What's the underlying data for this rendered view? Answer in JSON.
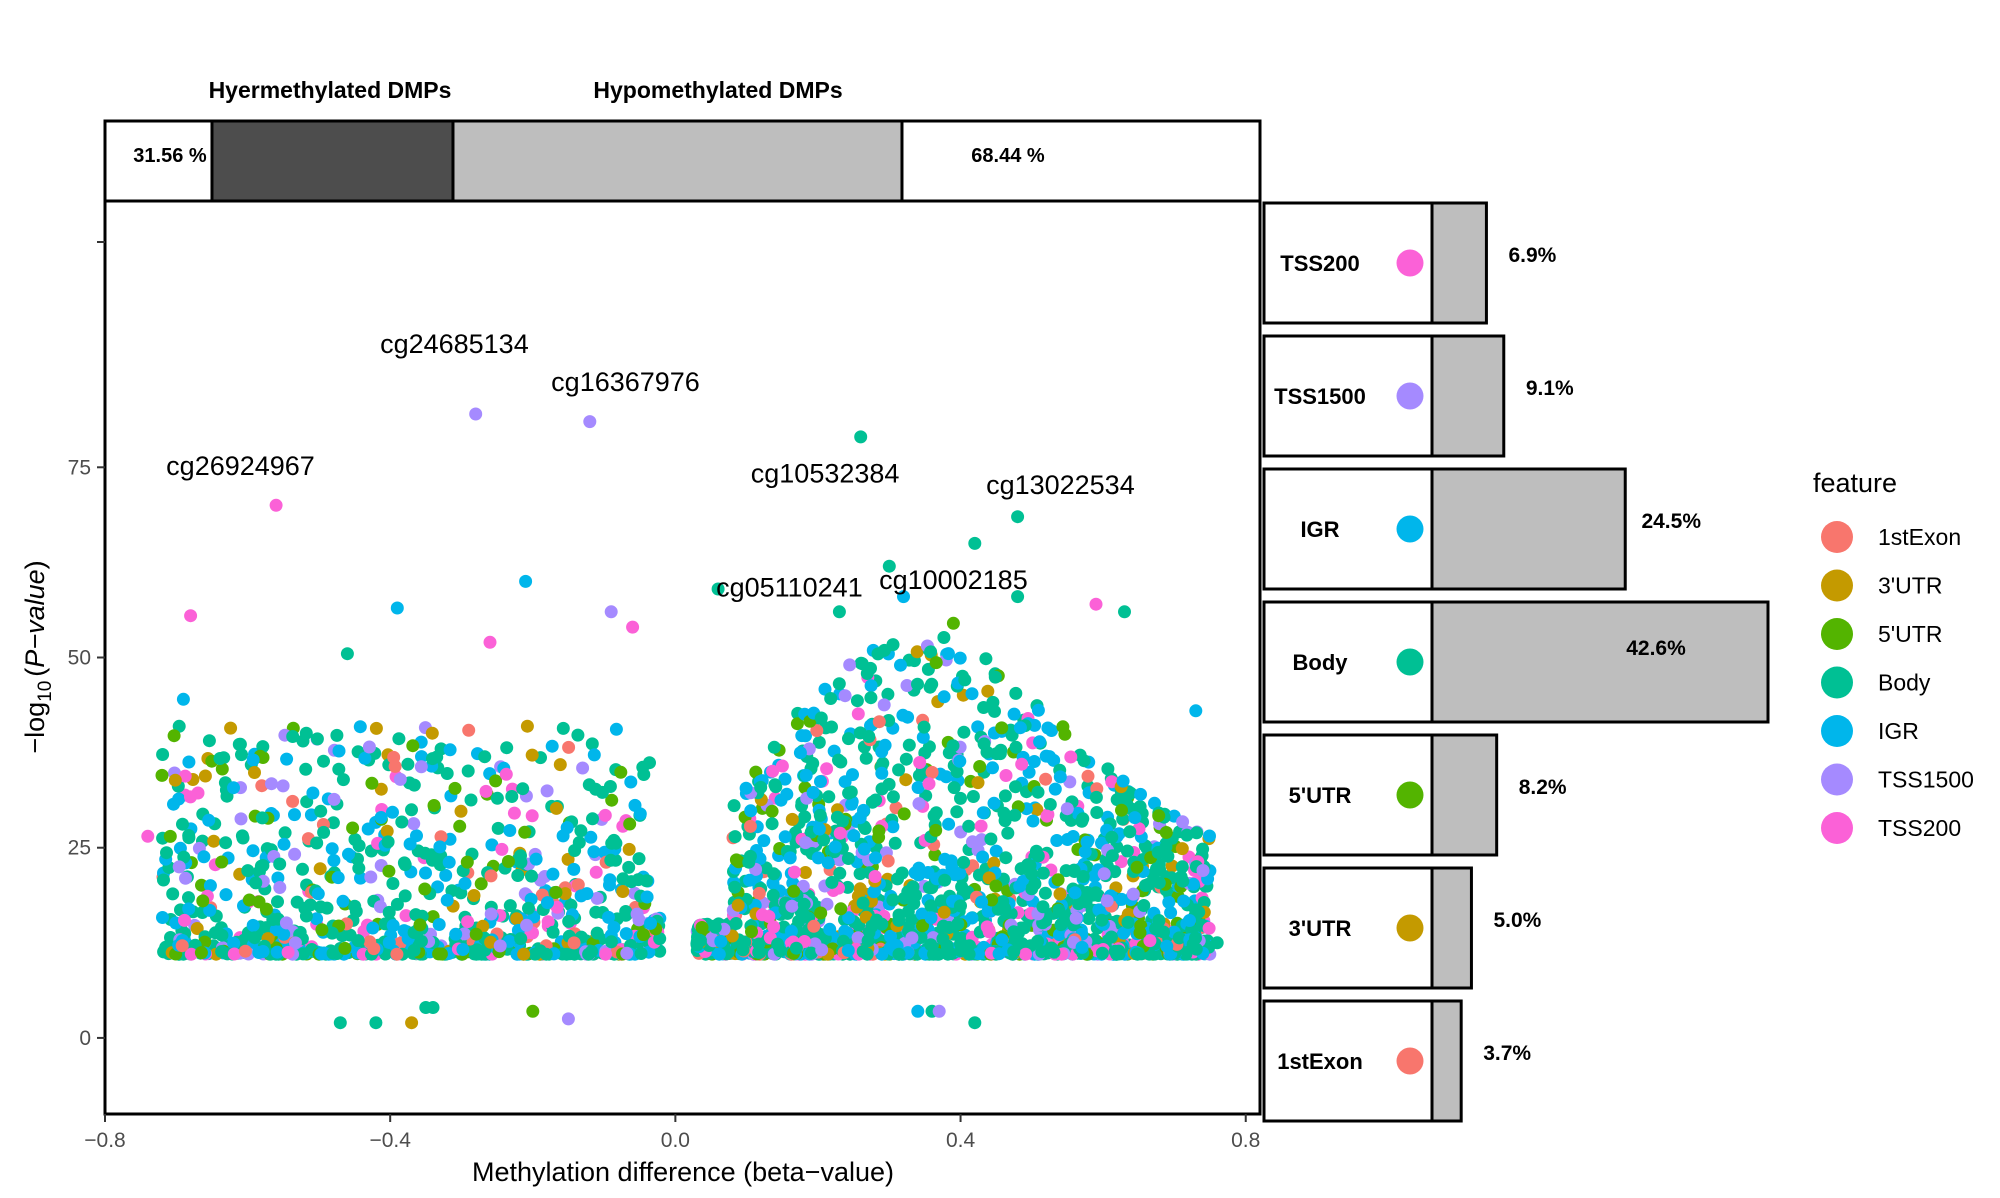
{
  "chart_data": {
    "type": "scatter",
    "xlabel": "Methylation difference (beta−value)",
    "ylabel_prefix": "−log",
    "ylabel_sub": "10",
    "ylabel_open": "(",
    "ylabel_italic": "P−value",
    "ylabel_close": ")",
    "xlim": [
      -0.8,
      0.82
    ],
    "ylim": [
      -10,
      110
    ],
    "x_ticks": [
      -0.8,
      -0.4,
      0.0,
      0.4,
      0.8
    ],
    "x_tick_labels": [
      "−0.8",
      "−0.4",
      "0.0",
      "0.4",
      "0.8"
    ],
    "y_ticks": [
      0,
      25,
      50,
      75
    ],
    "y_tick_labels": [
      "0",
      "25",
      "50",
      "75"
    ],
    "grid": false,
    "top_bar": {
      "labels": [
        "Hyermethylated DMPs",
        "Hypomethylated DMPs"
      ],
      "left_pct_label": "31.56 %",
      "right_pct_label": "68.44 %",
      "hyper_fraction": 0.3156,
      "hypo_fraction": 0.6844,
      "hyper_color": "#4d4d4d",
      "hypo_color": "#bebebe"
    },
    "features": [
      {
        "name": "1stExon",
        "color": "#F8766D"
      },
      {
        "name": "3'UTR",
        "color": "#C49A00"
      },
      {
        "name": "5'UTR",
        "color": "#53B400"
      },
      {
        "name": "Body",
        "color": "#00C094"
      },
      {
        "name": "IGR",
        "color": "#00B6EB"
      },
      {
        "name": "TSS1500",
        "color": "#A58AFF"
      },
      {
        "name": "TSS200",
        "color": "#FB61D7"
      }
    ],
    "legend_title": "feature",
    "legend_position": "right",
    "side_bars": [
      {
        "name": "TSS200",
        "value": 6.9,
        "label": "6.9%",
        "color": "#FB61D7"
      },
      {
        "name": "TSS1500",
        "value": 9.1,
        "label": "9.1%",
        "color": "#A58AFF"
      },
      {
        "name": "IGR",
        "value": 24.5,
        "label": "24.5%",
        "color": "#00B6EB"
      },
      {
        "name": "Body",
        "value": 42.6,
        "label": "42.6%",
        "color": "#00C094"
      },
      {
        "name": "5'UTR",
        "value": 8.2,
        "label": "8.2%",
        "color": "#53B400"
      },
      {
        "name": "3'UTR",
        "value": 5.0,
        "label": "5.0%",
        "color": "#C49A00"
      },
      {
        "name": "1stExon",
        "value": 3.7,
        "label": "3.7%",
        "color": "#F8766D"
      }
    ],
    "annotations": [
      {
        "label": "cg24685134",
        "x": -0.28,
        "y": 82,
        "color": "#A58AFF"
      },
      {
        "label": "cg16367976",
        "x": -0.12,
        "y": 81,
        "color": "#A58AFF"
      },
      {
        "label": "cg26924967",
        "x": -0.56,
        "y": 70,
        "color": "#FB61D7"
      },
      {
        "label": "cg10532384",
        "x": 0.26,
        "y": 79,
        "color": "#00C094"
      },
      {
        "label": "cg13022534",
        "x": 0.48,
        "y": 68.5,
        "color": "#00C094"
      },
      {
        "label": "cg10002185",
        "x": 0.3,
        "y": 62,
        "color": "#00C094"
      },
      {
        "label": "cg05110241",
        "x": 0.06,
        "y": 59,
        "color": "#00C094"
      }
    ],
    "sample_points": [
      {
        "feature": "IGR",
        "x": -0.69,
        "y": 44.5
      },
      {
        "feature": "TSS200",
        "x": -0.68,
        "y": 55.5
      },
      {
        "feature": "TSS200",
        "x": -0.74,
        "y": 26.5
      },
      {
        "feature": "5'UTR",
        "x": -0.72,
        "y": 34.5
      },
      {
        "feature": "IGR",
        "x": -0.21,
        "y": 60
      },
      {
        "feature": "TSS1500",
        "x": -0.09,
        "y": 56
      },
      {
        "feature": "TSS200",
        "x": -0.06,
        "y": 54
      },
      {
        "feature": "IGR",
        "x": -0.39,
        "y": 56.5
      },
      {
        "feature": "TSS200",
        "x": -0.26,
        "y": 52
      },
      {
        "feature": "Body",
        "x": -0.46,
        "y": 50.5
      },
      {
        "feature": "IGR",
        "x": 0.73,
        "y": 43
      },
      {
        "feature": "TSS1500",
        "x": 0.74,
        "y": 22
      },
      {
        "feature": "TSS200",
        "x": 0.59,
        "y": 57
      },
      {
        "feature": "Body",
        "x": 0.42,
        "y": 65
      },
      {
        "feature": "Body",
        "x": 0.23,
        "y": 56
      },
      {
        "feature": "IGR",
        "x": 0.32,
        "y": 58
      },
      {
        "feature": "Body",
        "x": 0.48,
        "y": 58
      },
      {
        "feature": "5'UTR",
        "x": 0.39,
        "y": 54.5
      },
      {
        "feature": "Body",
        "x": 0.63,
        "y": 56
      },
      {
        "feature": "Body",
        "x": 0.76,
        "y": 12.5
      },
      {
        "feature": "3'UTR",
        "x": -0.37,
        "y": 2
      },
      {
        "feature": "Body",
        "x": -0.47,
        "y": 2
      },
      {
        "feature": "Body",
        "x": -0.42,
        "y": 2
      },
      {
        "feature": "Body",
        "x": -0.35,
        "y": 4
      },
      {
        "feature": "Body",
        "x": -0.34,
        "y": 4
      },
      {
        "feature": "5'UTR",
        "x": -0.2,
        "y": 3.5
      },
      {
        "feature": "TSS1500",
        "x": -0.15,
        "y": 2.5
      },
      {
        "feature": "IGR",
        "x": 0.34,
        "y": 3.5
      },
      {
        "feature": "Body",
        "x": 0.36,
        "y": 3.5
      },
      {
        "feature": "TSS1500",
        "x": 0.37,
        "y": 3.5
      },
      {
        "feature": "Body",
        "x": 0.42,
        "y": 2
      }
    ]
  }
}
